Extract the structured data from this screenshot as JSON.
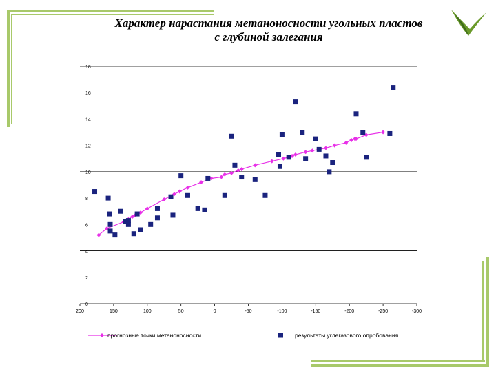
{
  "slide": {
    "title_line1": "Характер нарастания метаноносности угольных пластов",
    "title_line2": "с глубиной залегания",
    "frame_color": "#a8c96a",
    "logo_colors": [
      "#6a9a2a",
      "#3d6b1a"
    ]
  },
  "chart_data": {
    "type": "scatter",
    "title": "",
    "xlim": [
      200,
      -300
    ],
    "ylim": [
      0,
      18
    ],
    "x_ticks": [
      200,
      150,
      100,
      50,
      0,
      -50,
      -100,
      -150,
      -200,
      -250,
      -300
    ],
    "y_ticks": [
      0,
      2,
      4,
      6,
      8,
      10,
      12,
      14,
      16,
      18
    ],
    "grid": "horizontal at 4, 10, 14, 18",
    "legend_position": "bottom",
    "series": [
      {
        "name": "прогнозные точки метаноносности",
        "kind": "line",
        "color": "#e830e8",
        "x": [
          172,
          160,
          135,
          128,
          122,
          118,
          115,
          110,
          100,
          75,
          60,
          52,
          40,
          20,
          5,
          -10,
          -15,
          -25,
          -35,
          -40,
          -60,
          -85,
          -102,
          -115,
          -120,
          -135,
          -145,
          -155,
          -165,
          -178,
          -195,
          -203,
          -208,
          -210,
          -225,
          -250
        ],
        "y": [
          5.2,
          5.7,
          6.2,
          6.4,
          6.6,
          6.7,
          6.8,
          6.9,
          7.2,
          7.9,
          8.3,
          8.5,
          8.8,
          9.2,
          9.5,
          9.6,
          9.8,
          9.9,
          10.1,
          10.2,
          10.5,
          10.8,
          11.0,
          11.2,
          11.3,
          11.5,
          11.6,
          11.7,
          11.8,
          12.0,
          12.2,
          12.4,
          12.5,
          12.5,
          12.8,
          13.0
        ]
      },
      {
        "name": "результаты углегазового опробования",
        "kind": "scatter",
        "color": "#1a237e",
        "x": [
          178,
          158,
          155,
          155,
          156,
          148,
          140,
          132,
          128,
          128,
          120,
          115,
          110,
          95,
          85,
          85,
          65,
          62,
          50,
          40,
          25,
          15,
          10,
          -15,
          -25,
          -30,
          -40,
          -60,
          -75,
          -95,
          -97,
          -100,
          -110,
          -120,
          -130,
          -135,
          -150,
          -155,
          -165,
          -170,
          -175,
          -210,
          -220,
          -225,
          -260,
          -265
        ],
        "y": [
          8.5,
          8.0,
          6.0,
          5.5,
          6.8,
          5.2,
          7.0,
          6.2,
          6.0,
          6.3,
          5.3,
          6.8,
          5.6,
          6.0,
          7.2,
          6.5,
          8.1,
          6.7,
          9.7,
          8.2,
          7.2,
          7.1,
          9.5,
          8.2,
          12.7,
          10.5,
          9.6,
          9.4,
          8.2,
          11.3,
          10.4,
          12.8,
          11.1,
          15.3,
          13.0,
          11.0,
          12.5,
          11.7,
          11.2,
          10.0,
          10.7,
          14.4,
          13.0,
          11.1,
          12.9,
          16.4
        ]
      }
    ]
  }
}
